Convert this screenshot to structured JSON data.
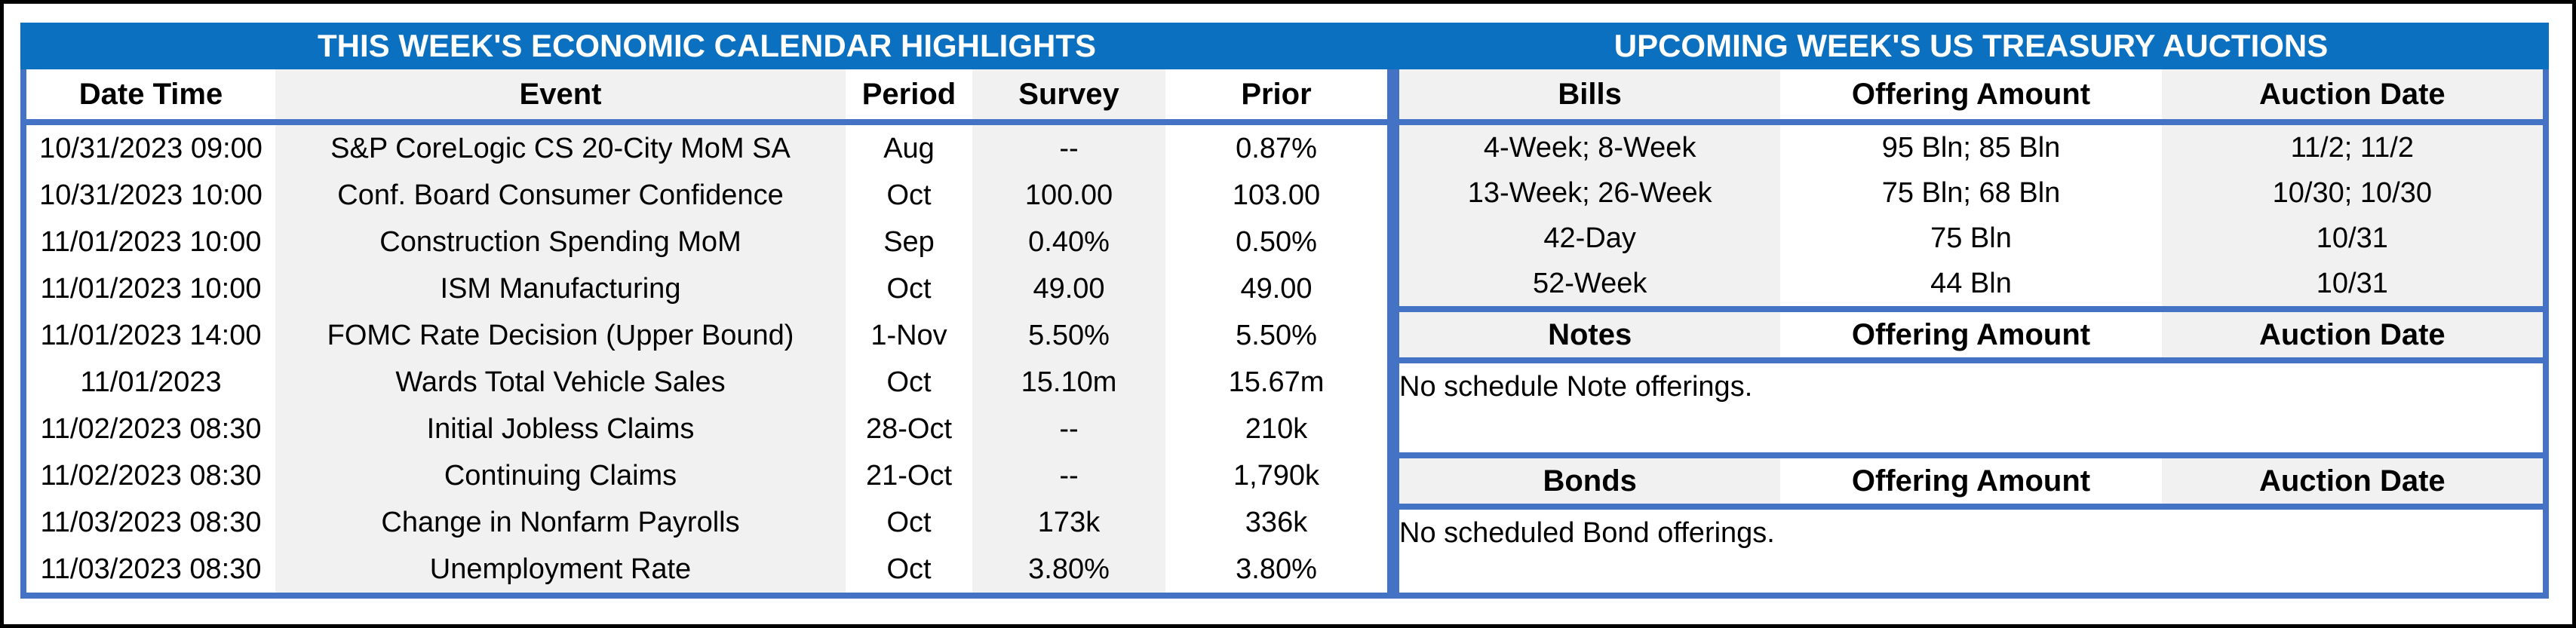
{
  "colors": {
    "title_bar_blue": "#0b70c0",
    "table_border_blue": "#4472c4",
    "alt_column_gray": "#f1f1f1",
    "outer_border_black": "#000000",
    "title_text_white": "#ffffff"
  },
  "economic_calendar": {
    "title": "THIS WEEK'S ECONOMIC CALENDAR HIGHLIGHTS",
    "columns": [
      "Date Time",
      "Event",
      "Period",
      "Survey",
      "Prior"
    ],
    "rows": [
      [
        "10/31/2023 09:00",
        "S&P CoreLogic CS 20-City MoM SA",
        "Aug",
        "--",
        "0.87%"
      ],
      [
        "10/31/2023 10:00",
        "Conf. Board Consumer Confidence",
        "Oct",
        "100.00",
        "103.00"
      ],
      [
        "11/01/2023 10:00",
        "Construction Spending MoM",
        "Sep",
        "0.40%",
        "0.50%"
      ],
      [
        "11/01/2023 10:00",
        "ISM Manufacturing",
        "Oct",
        "49.00",
        "49.00"
      ],
      [
        "11/01/2023 14:00",
        "FOMC Rate Decision (Upper Bound)",
        "1-Nov",
        "5.50%",
        "5.50%"
      ],
      [
        "11/01/2023",
        "Wards Total Vehicle Sales",
        "Oct",
        "15.10m",
        "15.67m"
      ],
      [
        "11/02/2023 08:30",
        "Initial Jobless Claims",
        "28-Oct",
        "--",
        "210k"
      ],
      [
        "11/02/2023 08:30",
        "Continuing Claims",
        "21-Oct",
        "--",
        "1,790k"
      ],
      [
        "11/03/2023 08:30",
        "Change in Nonfarm Payrolls",
        "Oct",
        "173k",
        "336k"
      ],
      [
        "11/03/2023 08:30",
        "Unemployment Rate",
        "Oct",
        "3.80%",
        "3.80%"
      ]
    ]
  },
  "treasury_auctions": {
    "title": "UPCOMING WEEK'S US TREASURY AUCTIONS",
    "bills": {
      "columns": [
        "Bills",
        "Offering Amount",
        "Auction Date"
      ],
      "rows": [
        [
          "4-Week; 8-Week",
          "95 Bln; 85 Bln",
          "11/2; 11/2"
        ],
        [
          "13-Week; 26-Week",
          "75 Bln; 68 Bln",
          "10/30; 10/30"
        ],
        [
          "42-Day",
          "75 Bln",
          "10/31"
        ],
        [
          "52-Week",
          "44 Bln",
          "10/31"
        ]
      ]
    },
    "notes": {
      "columns": [
        "Notes",
        "Offering Amount",
        "Auction Date"
      ],
      "message": "No schedule Note offerings."
    },
    "bonds": {
      "columns": [
        "Bonds",
        "Offering Amount",
        "Auction Date"
      ],
      "message": "No scheduled Bond offerings."
    }
  }
}
